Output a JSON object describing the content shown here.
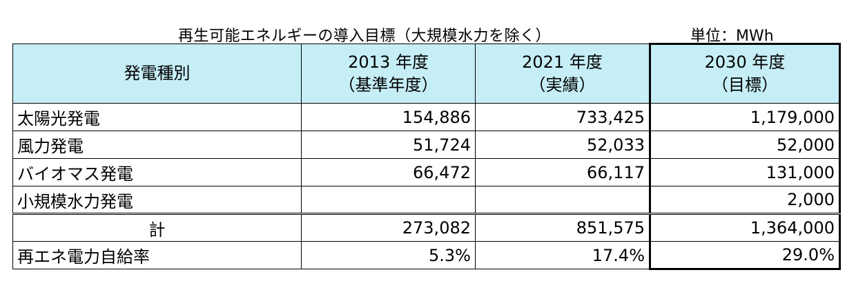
{
  "caption": {
    "title": "再生可能エネルギーの導入目標（大規模水力を除く）",
    "unit": "単位：MWh"
  },
  "table": {
    "header": {
      "category": "発電種別",
      "col1_line1": "2013 年度",
      "col1_line2": "（基準年度）",
      "col2_line1": "2021 年度",
      "col2_line2": "（実績）",
      "col3_line1": "2030 年度",
      "col3_line2": "（目標）"
    },
    "rows": [
      {
        "label": "太陽光発電",
        "v2013": "154,886",
        "v2021": "733,425",
        "v2030": "1,179,000"
      },
      {
        "label": "風力発電",
        "v2013": "51,724",
        "v2021": "52,033",
        "v2030": "52,000"
      },
      {
        "label": "バイオマス発電",
        "v2013": "66,472",
        "v2021": "66,117",
        "v2030": "131,000"
      },
      {
        "label": "小規模水力発電",
        "v2013": "",
        "v2021": "",
        "v2030": "2,000"
      }
    ],
    "total": {
      "label": "計",
      "v2013": "273,082",
      "v2021": "851,575",
      "v2030": "1,364,000"
    },
    "ratio": {
      "label": "再エネ電力自給率",
      "v2013": "5.3%",
      "v2021": "17.4%",
      "v2030": "29.0%"
    }
  },
  "colors": {
    "header_bg": "#c6eef6"
  }
}
